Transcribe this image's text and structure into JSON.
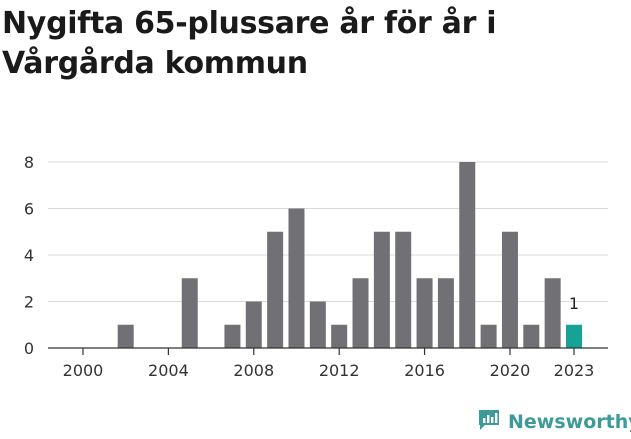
{
  "chart_data": {
    "type": "bar",
    "title": "Nygifta 65-plussare år för år i Vårgårda kommun",
    "x": [
      2000,
      2001,
      2002,
      2003,
      2004,
      2005,
      2006,
      2007,
      2008,
      2009,
      2010,
      2011,
      2012,
      2013,
      2014,
      2015,
      2016,
      2017,
      2018,
      2019,
      2020,
      2021,
      2022,
      2023
    ],
    "values": [
      0,
      0,
      1,
      0,
      0,
      3,
      0,
      1,
      2,
      5,
      6,
      2,
      1,
      3,
      5,
      5,
      3,
      3,
      8,
      1,
      5,
      1,
      3,
      1
    ],
    "x_tick_labels": [
      "2000",
      "2004",
      "2008",
      "2012",
      "2016",
      "2020",
      "2023"
    ],
    "y_tick_labels": [
      "0",
      "2",
      "4",
      "6",
      "8"
    ],
    "ylim": [
      0,
      8
    ],
    "grid": true,
    "highlight": {
      "year": 2023,
      "label": "1"
    },
    "colors": {
      "bar": "#717074",
      "highlight": "#16a297",
      "grid": "#d9d9d9",
      "axis": "#333333"
    }
  },
  "brand": {
    "name": "Newsworthy",
    "icon": "newsworthy-logo-icon",
    "color": "#3d9a98"
  }
}
